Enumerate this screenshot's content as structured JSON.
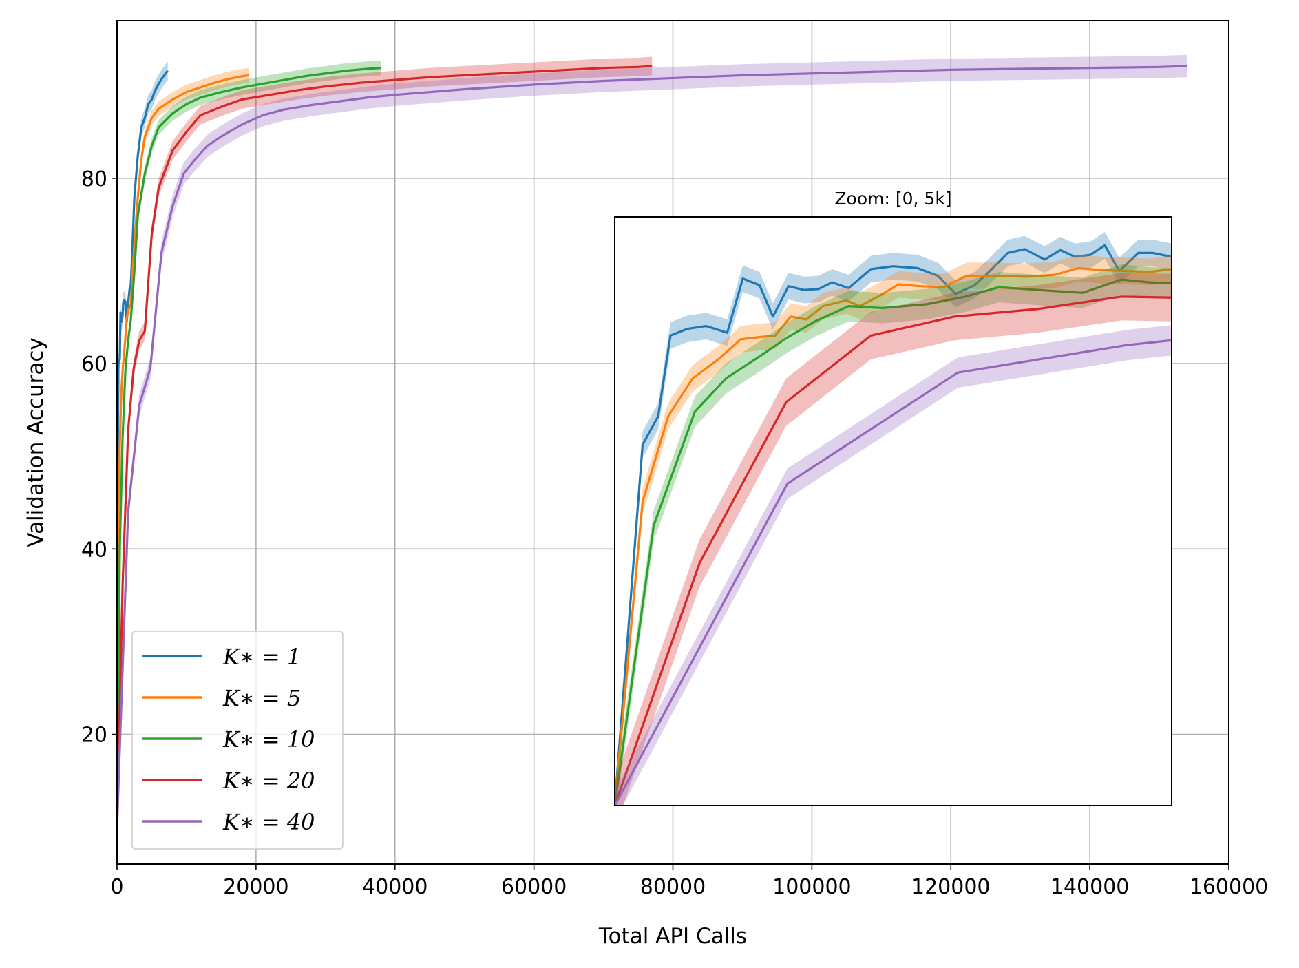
{
  "chart_data": {
    "type": "line",
    "xlabel": "Total API Calls",
    "ylabel": "Validation Accuracy",
    "xlim": [
      0,
      160000
    ],
    "ylim": [
      6,
      97
    ],
    "xticks": [
      0,
      20000,
      40000,
      60000,
      80000,
      100000,
      120000,
      140000,
      160000
    ],
    "yticks": [
      20,
      40,
      60,
      80
    ],
    "grid": true,
    "legend_placement": "lower-left",
    "series": [
      {
        "name": "K_* = 1",
        "legend_text": "K∗ = 1",
        "color": "#1f77b4",
        "x": [
          0,
          100,
          200,
          300,
          400,
          500,
          600,
          700,
          800,
          900,
          1000,
          1200,
          1400,
          1600,
          1800,
          2000,
          2500,
          3000,
          3500,
          4000,
          4500,
          5000,
          5500,
          6000,
          6500,
          7000,
          7300
        ],
        "y": [
          10,
          47,
          60,
          60.3,
          60.5,
          65.5,
          64.5,
          64.6,
          65.2,
          66.6,
          66.8,
          66.7,
          64.5,
          66.5,
          68.0,
          68.5,
          78,
          82.5,
          85.5,
          86.5,
          88,
          88.5,
          89.5,
          90.2,
          90.8,
          91.3,
          91.6
        ],
        "band": 1.0
      },
      {
        "name": "K_* = 5",
        "legend_text": "K∗ = 5",
        "color": "#ff7f0e",
        "x": [
          0,
          200,
          400,
          600,
          800,
          1000,
          1200,
          1400,
          1600,
          1800,
          2000,
          2500,
          3000,
          3500,
          4000,
          5000,
          6000,
          8000,
          10000,
          12000,
          14000,
          16000,
          18000,
          19000
        ],
        "y": [
          10,
          41,
          51,
          56.6,
          59.2,
          61.0,
          62.8,
          64.8,
          65.8,
          66.0,
          66.5,
          73,
          78,
          82,
          84.5,
          86.5,
          87.5,
          88.5,
          89.3,
          89.8,
          90.3,
          90.7,
          91.0,
          91.1
        ],
        "band": 0.8
      },
      {
        "name": "K_* = 10",
        "legend_text": "K∗ = 10",
        "color": "#2ca02c",
        "x": [
          0,
          400,
          800,
          1200,
          1600,
          2000,
          2500,
          3000,
          4000,
          5000,
          6000,
          8000,
          10000,
          12000,
          15000,
          18000,
          21000,
          24000,
          27000,
          30000,
          33000,
          36000,
          38000
        ],
        "y": [
          10,
          40,
          52,
          59.2,
          62.5,
          64.8,
          70,
          76,
          80.5,
          83.5,
          85.5,
          87,
          88,
          88.7,
          89.3,
          89.8,
          90.2,
          90.6,
          91.0,
          91.3,
          91.6,
          91.8,
          91.9
        ],
        "band": 0.8
      },
      {
        "name": "K_* = 20",
        "legend_text": "K∗ = 20",
        "color": "#d62728",
        "x": [
          0,
          800,
          1600,
          2400,
          3200,
          4000,
          5000,
          6000,
          8000,
          10000,
          12000,
          15000,
          18000,
          22000,
          26000,
          30000,
          35000,
          40000,
          45000,
          50000,
          55000,
          60000,
          65000,
          70000,
          75000,
          77000
        ],
        "y": [
          10,
          36,
          52.8,
          59.5,
          62.5,
          63.5,
          74,
          79,
          83,
          85,
          86.8,
          87.7,
          88.5,
          89.0,
          89.5,
          89.9,
          90.3,
          90.6,
          90.9,
          91.1,
          91.3,
          91.5,
          91.7,
          91.9,
          92.0,
          92.1
        ],
        "band": 1.0
      },
      {
        "name": "K_* = 40",
        "legend_text": "K∗ = 40",
        "color": "#9467bd",
        "x": [
          0,
          1600,
          3200,
          4800,
          6400,
          8000,
          9600,
          11200,
          13000,
          15000,
          18000,
          21000,
          24000,
          28000,
          32000,
          36000,
          40000,
          50000,
          60000,
          70000,
          80000,
          90000,
          100000,
          110000,
          120000,
          130000,
          140000,
          150000,
          154000
        ],
        "y": [
          10,
          44,
          55.5,
          59.5,
          72,
          77,
          80.5,
          82,
          83.5,
          84.5,
          85.8,
          86.8,
          87.4,
          87.9,
          88.3,
          88.7,
          89.0,
          89.6,
          90.1,
          90.5,
          90.8,
          91.1,
          91.3,
          91.5,
          91.7,
          91.8,
          91.9,
          92.0,
          92.1
        ],
        "band": 1.2
      }
    ],
    "inset": {
      "title": "Zoom: [0, 5k]",
      "xlim": [
        0,
        5000
      ],
      "ylim": [
        10,
        72
      ],
      "series": [
        {
          "name": "K_* = 1",
          "color": "#1f77b4",
          "x": [
            0,
            250,
            390,
            500,
            650,
            820,
            1010,
            1150,
            1300,
            1420,
            1560,
            1700,
            1830,
            1950,
            2100,
            2300,
            2500,
            2720,
            2900,
            3060,
            3230,
            3350,
            3530,
            3680,
            3860,
            4000,
            4130,
            4270,
            4400,
            4530,
            4700,
            4830,
            5000
          ],
          "y": [
            10,
            48,
            51,
            59.5,
            60.2,
            60.5,
            59.8,
            65.5,
            64.8,
            61.5,
            64.7,
            64.3,
            64.4,
            65.1,
            64.5,
            66.5,
            66.8,
            66.6,
            65.8,
            63.9,
            64.8,
            66.1,
            68.2,
            68.6,
            67.5,
            68.5,
            67.8,
            68.0,
            69.0,
            66.3,
            68.2,
            68.2,
            67.8
          ],
          "band": 1.4
        },
        {
          "name": "K_* = 5",
          "color": "#ff7f0e",
          "x": [
            0,
            250,
            480,
            700,
            930,
            1130,
            1270,
            1440,
            1580,
            1720,
            1870,
            2080,
            2200,
            2380,
            2550,
            2740,
            2950,
            3160,
            3400,
            3700,
            3950,
            4160,
            4370,
            4600,
            4800,
            5000
          ],
          "y": [
            10,
            42,
            51,
            55,
            57,
            59.1,
            59.3,
            59.5,
            61.5,
            61.2,
            62.6,
            63.2,
            62.6,
            63.7,
            64.9,
            64.7,
            64.6,
            65.8,
            65.8,
            65.7,
            65.9,
            66.6,
            66.4,
            66.3,
            66.2,
            66.5
          ],
          "band": 1.4
        },
        {
          "name": "K_* = 10",
          "color": "#2ca02c",
          "x": [
            0,
            350,
            720,
            1000,
            1300,
            1550,
            1800,
            2100,
            2400,
            2800,
            3150,
            3450,
            3800,
            4200,
            4550,
            4800,
            5000
          ],
          "y": [
            10,
            39.5,
            51.5,
            55,
            57.3,
            59.3,
            61,
            62.6,
            62.4,
            62.8,
            63.6,
            64.6,
            64.3,
            64.0,
            65.4,
            65.1,
            65.0
          ],
          "band": 1.6
        },
        {
          "name": "K_* = 20",
          "color": "#d62728",
          "x": [
            0,
            760,
            1540,
            2300,
            3050,
            3800,
            4550,
            5000
          ],
          "y": [
            10,
            35.5,
            52.5,
            59.5,
            61.5,
            62.3,
            63.6,
            63.5
          ],
          "band": 2.5
        },
        {
          "name": "K_* = 40",
          "color": "#9467bd",
          "x": [
            0,
            1550,
            3080,
            4600,
            5000
          ],
          "y": [
            10,
            43.9,
            55.6,
            58.5,
            59.0
          ],
          "band": 1.6
        }
      ]
    }
  }
}
